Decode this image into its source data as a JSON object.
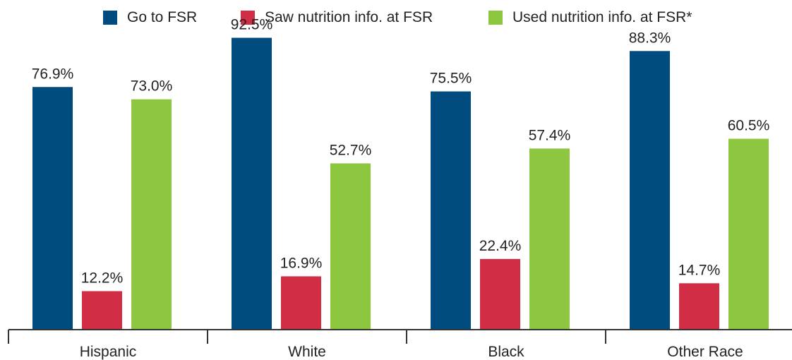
{
  "chart_data": {
    "type": "bar",
    "title": "",
    "xlabel": "",
    "ylabel": "",
    "ylim": [
      0,
      100
    ],
    "grid": false,
    "legend_position": "top",
    "categories": [
      "Hispanic",
      "White",
      "Black",
      "Other Race"
    ],
    "series": [
      {
        "name": "Go to FSR",
        "color": "#004c7e",
        "values": [
          76.9,
          92.5,
          75.5,
          88.3
        ],
        "labels": [
          "76.9%",
          "92.5%",
          "75.5%",
          "88.3%"
        ]
      },
      {
        "name": "Saw nutrition info. at FSR",
        "color": "#d12e45",
        "values": [
          12.2,
          16.9,
          22.4,
          14.7
        ],
        "labels": [
          "12.2%",
          "16.9%",
          "22.4%",
          "14.7%"
        ]
      },
      {
        "name": "Used nutrition info. at FSR*",
        "color": "#8dc63f",
        "values": [
          73.0,
          52.7,
          57.4,
          60.5
        ],
        "labels": [
          "73.0%",
          "52.7%",
          "57.4%",
          "60.5%"
        ]
      }
    ]
  }
}
